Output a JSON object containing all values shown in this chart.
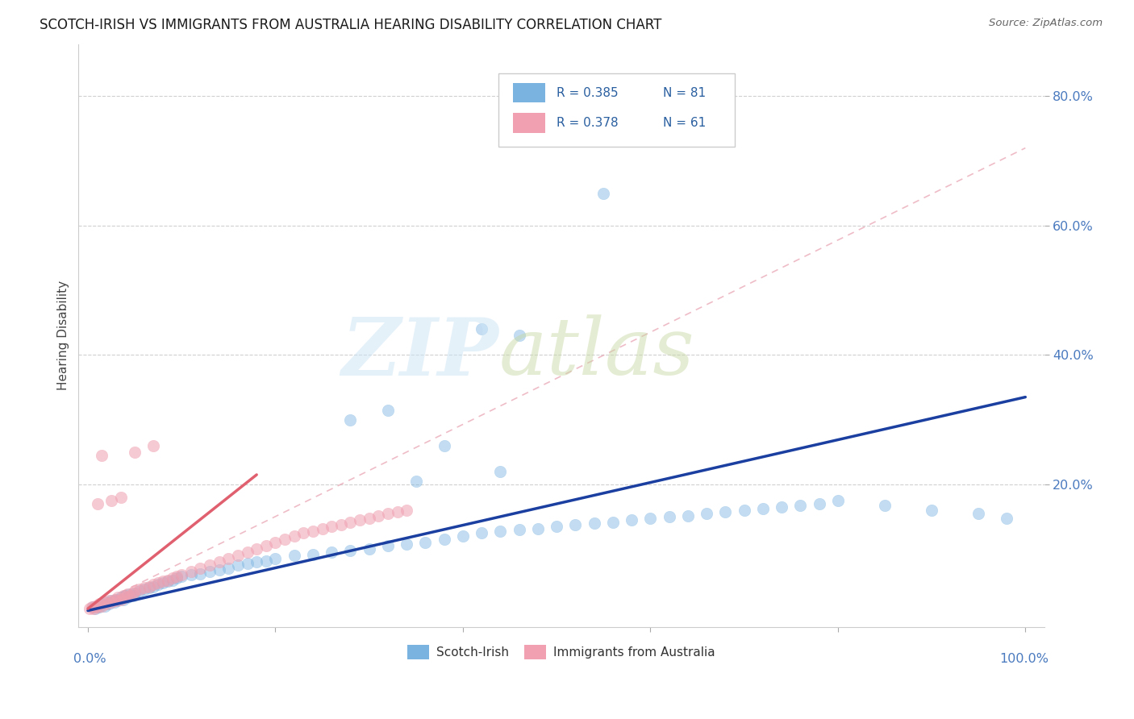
{
  "title": "SCOTCH-IRISH VS IMMIGRANTS FROM AUSTRALIA HEARING DISABILITY CORRELATION CHART",
  "source": "Source: ZipAtlas.com",
  "ylabel": "Hearing Disability",
  "ytick_labels": [
    "20.0%",
    "40.0%",
    "60.0%",
    "80.0%"
  ],
  "ytick_values": [
    0.2,
    0.4,
    0.6,
    0.8
  ],
  "xlim": [
    -0.01,
    1.02
  ],
  "ylim": [
    -0.02,
    0.88
  ],
  "blue_dot_color": "#7ab3e0",
  "pink_dot_color": "#f0a0b0",
  "blue_line_color": "#1a3fa0",
  "pink_line_color": "#e06070",
  "pink_dash_color": "#e8a0b0",
  "tick_color": "#4a7abf",
  "legend_r_color": "#2a5fa0",
  "bottom_legend_labels": [
    "Scotch-Irish",
    "Immigrants from Australia"
  ],
  "bottom_legend_colors": [
    "#7ab3e0",
    "#f0a0b0"
  ],
  "blue_line": [
    [
      0.0,
      0.005
    ],
    [
      1.0,
      0.335
    ]
  ],
  "pink_solid_line": [
    [
      0.0,
      0.008
    ],
    [
      0.18,
      0.215
    ]
  ],
  "pink_dash_line": [
    [
      0.0,
      0.008
    ],
    [
      1.0,
      0.72
    ]
  ],
  "scotch_irish_x": [
    0.005,
    0.008,
    0.01,
    0.012,
    0.015,
    0.018,
    0.02,
    0.022,
    0.025,
    0.028,
    0.03,
    0.032,
    0.035,
    0.038,
    0.04,
    0.042,
    0.045,
    0.048,
    0.05,
    0.055,
    0.06,
    0.065,
    0.07,
    0.075,
    0.08,
    0.085,
    0.09,
    0.095,
    0.1,
    0.11,
    0.12,
    0.13,
    0.14,
    0.15,
    0.16,
    0.17,
    0.18,
    0.19,
    0.2,
    0.22,
    0.24,
    0.26,
    0.28,
    0.3,
    0.32,
    0.34,
    0.36,
    0.38,
    0.4,
    0.42,
    0.44,
    0.46,
    0.48,
    0.5,
    0.52,
    0.54,
    0.56,
    0.58,
    0.6,
    0.62,
    0.64,
    0.66,
    0.68,
    0.7,
    0.72,
    0.74,
    0.76,
    0.78,
    0.8,
    0.85,
    0.9,
    0.95,
    0.98,
    0.35,
    0.28,
    0.42,
    0.46,
    0.38,
    0.44,
    0.32,
    0.55
  ],
  "scotch_irish_y": [
    0.01,
    0.008,
    0.012,
    0.01,
    0.015,
    0.012,
    0.018,
    0.015,
    0.02,
    0.018,
    0.022,
    0.02,
    0.025,
    0.022,
    0.028,
    0.025,
    0.03,
    0.028,
    0.032,
    0.035,
    0.038,
    0.04,
    0.042,
    0.045,
    0.048,
    0.05,
    0.052,
    0.055,
    0.058,
    0.06,
    0.062,
    0.065,
    0.068,
    0.07,
    0.075,
    0.078,
    0.08,
    0.082,
    0.085,
    0.09,
    0.092,
    0.095,
    0.098,
    0.1,
    0.105,
    0.108,
    0.11,
    0.115,
    0.12,
    0.125,
    0.128,
    0.13,
    0.132,
    0.135,
    0.138,
    0.14,
    0.142,
    0.145,
    0.148,
    0.15,
    0.152,
    0.155,
    0.158,
    0.16,
    0.162,
    0.165,
    0.168,
    0.17,
    0.175,
    0.168,
    0.16,
    0.155,
    0.148,
    0.205,
    0.3,
    0.44,
    0.43,
    0.26,
    0.22,
    0.315,
    0.65
  ],
  "australia_x": [
    0.002,
    0.004,
    0.006,
    0.008,
    0.01,
    0.012,
    0.015,
    0.018,
    0.02,
    0.022,
    0.025,
    0.028,
    0.03,
    0.032,
    0.035,
    0.038,
    0.04,
    0.042,
    0.045,
    0.048,
    0.05,
    0.055,
    0.06,
    0.065,
    0.07,
    0.075,
    0.08,
    0.085,
    0.09,
    0.095,
    0.1,
    0.11,
    0.12,
    0.13,
    0.14,
    0.15,
    0.16,
    0.17,
    0.18,
    0.19,
    0.2,
    0.21,
    0.22,
    0.23,
    0.24,
    0.25,
    0.26,
    0.27,
    0.28,
    0.29,
    0.3,
    0.31,
    0.32,
    0.33,
    0.34,
    0.01,
    0.025,
    0.035,
    0.05,
    0.07,
    0.015
  ],
  "australia_y": [
    0.008,
    0.01,
    0.008,
    0.012,
    0.01,
    0.015,
    0.012,
    0.018,
    0.015,
    0.02,
    0.018,
    0.022,
    0.02,
    0.025,
    0.022,
    0.028,
    0.025,
    0.03,
    0.028,
    0.032,
    0.035,
    0.038,
    0.04,
    0.042,
    0.045,
    0.048,
    0.05,
    0.052,
    0.055,
    0.058,
    0.06,
    0.065,
    0.07,
    0.075,
    0.08,
    0.085,
    0.09,
    0.095,
    0.1,
    0.105,
    0.11,
    0.115,
    0.12,
    0.125,
    0.128,
    0.132,
    0.135,
    0.138,
    0.142,
    0.145,
    0.148,
    0.152,
    0.155,
    0.158,
    0.16,
    0.17,
    0.175,
    0.18,
    0.25,
    0.26,
    0.245
  ]
}
